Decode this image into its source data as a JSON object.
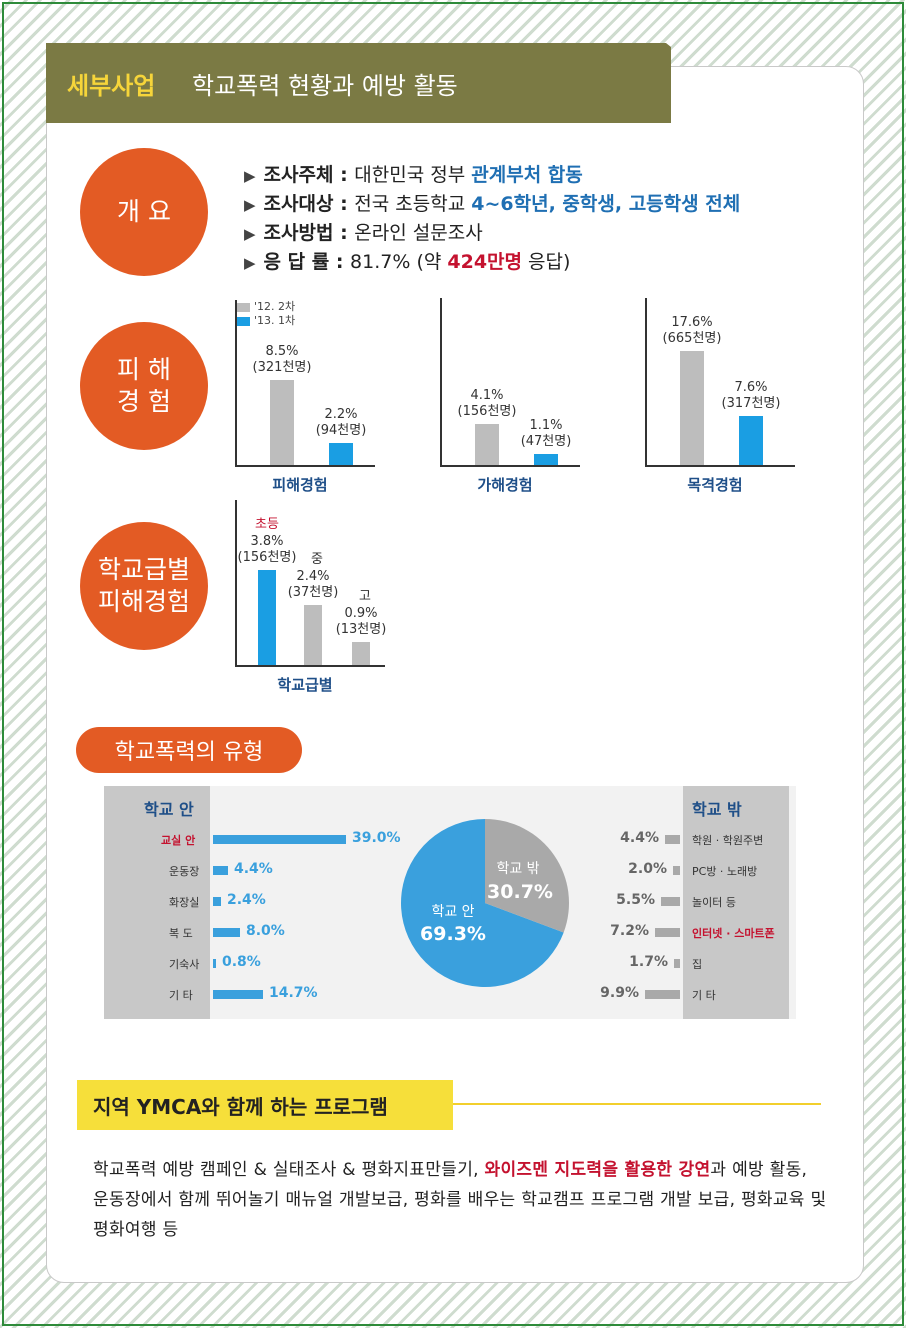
{
  "header": {
    "tag": "세부사업",
    "title": "학교폭력 현황과 예방 활동"
  },
  "overview": {
    "label": "개 요",
    "items": [
      {
        "key": "조사주체 : ",
        "plain": "대한민국 정부 ",
        "emph": "관계부처 합동",
        "tail": ""
      },
      {
        "key": "조사대상 : ",
        "plain": "전국 초등학교 ",
        "emph": "4~6학년, 중학생, 고등학생 전체",
        "tail": ""
      },
      {
        "key": "조사방법 : ",
        "plain": "온라인 설문조사",
        "emph": "",
        "tail": ""
      },
      {
        "key": "응 답 률 : ",
        "plain": "81.7% (약 ",
        "emph": "424만명",
        "tail": " 응답)"
      }
    ]
  },
  "experience": {
    "label": "피 해\n경 험",
    "legend": [
      "'12. 2차",
      "'13. 1차"
    ],
    "colors": {
      "prev": "#bdbdbd",
      "curr": "#1a9ee3"
    }
  },
  "chart_data": [
    {
      "type": "bar",
      "xlabel": "피해경험",
      "categories": [
        "'12. 2차",
        "'13. 1차"
      ],
      "values": [
        8.5,
        2.2
      ],
      "labels": [
        "8.5%\n(321천명)",
        "2.2%\n(94천명)"
      ]
    },
    {
      "type": "bar",
      "xlabel": "가해경험",
      "categories": [
        "'12. 2차",
        "'13. 1차"
      ],
      "values": [
        4.1,
        1.1
      ],
      "labels": [
        "4.1%\n(156천명)",
        "1.1%\n(47천명)"
      ]
    },
    {
      "type": "bar",
      "xlabel": "목격경험",
      "categories": [
        "'12. 2차",
        "'13. 1차"
      ],
      "values": [
        17.6,
        7.6
      ],
      "labels": [
        "17.6%\n(665천명)",
        "7.6%\n(317천명)"
      ]
    },
    {
      "type": "bar",
      "xlabel": "학교급별",
      "categories": [
        "초등",
        "중",
        "고"
      ],
      "values": [
        3.8,
        2.4,
        0.9
      ],
      "labels": [
        "3.8%\n(156천명)",
        "2.4%\n(37천명)",
        "0.9%\n(13천명)"
      ]
    },
    {
      "type": "pie",
      "series": [
        {
          "name": "학교 안",
          "value": 69.3,
          "label": "69.3%"
        },
        {
          "name": "학교 밖",
          "value": 30.7,
          "label": "30.7%"
        }
      ],
      "colors": [
        "#3aa0dd",
        "#a9a9a9"
      ]
    },
    {
      "type": "bar",
      "title": "학교 안",
      "categories": [
        "교실 안",
        "운동장",
        "화장실",
        "복 도",
        "기숙사",
        "기 타"
      ],
      "values": [
        39.0,
        4.4,
        2.4,
        8.0,
        0.8,
        14.7
      ],
      "labels": [
        "39.0%",
        "4.4%",
        "2.4%",
        "8.0%",
        "0.8%",
        "14.7%"
      ]
    },
    {
      "type": "bar",
      "title": "학교 밖",
      "categories": [
        "학원 · 학원주변",
        "PC방 · 노래방",
        "놀이터 등",
        "인터넷 · 스마트폰",
        "집",
        "기 타"
      ],
      "values": [
        4.4,
        2.0,
        5.5,
        7.2,
        1.7,
        9.9
      ],
      "labels": [
        "4.4%",
        "2.0%",
        "5.5%",
        "7.2%",
        "1.7%",
        "9.9%"
      ]
    }
  ],
  "school_level": {
    "label": "학교급별\n피해경험",
    "tags": [
      "초등",
      "중",
      "고"
    ]
  },
  "types": {
    "pill": "학교폭력의 유형",
    "inside_title": "학교 안",
    "outside_title": "학교 밖"
  },
  "ymca": {
    "title": "지역 YMCA와 함께 하는 프로그램",
    "p1": "학교폭력 예방 캠페인 & 실태조사 & 평화지표만들기, ",
    "p_emph": "와이즈멘 지도력을 활용한 강연",
    "p2": "과 예방 활동, 운동장에서 함께 뛰어놀기 매뉴얼 개발보급, 평화를 배우는 학교캠프 프로그램 개발 보급, 평화교육 및 평화여행 등"
  }
}
